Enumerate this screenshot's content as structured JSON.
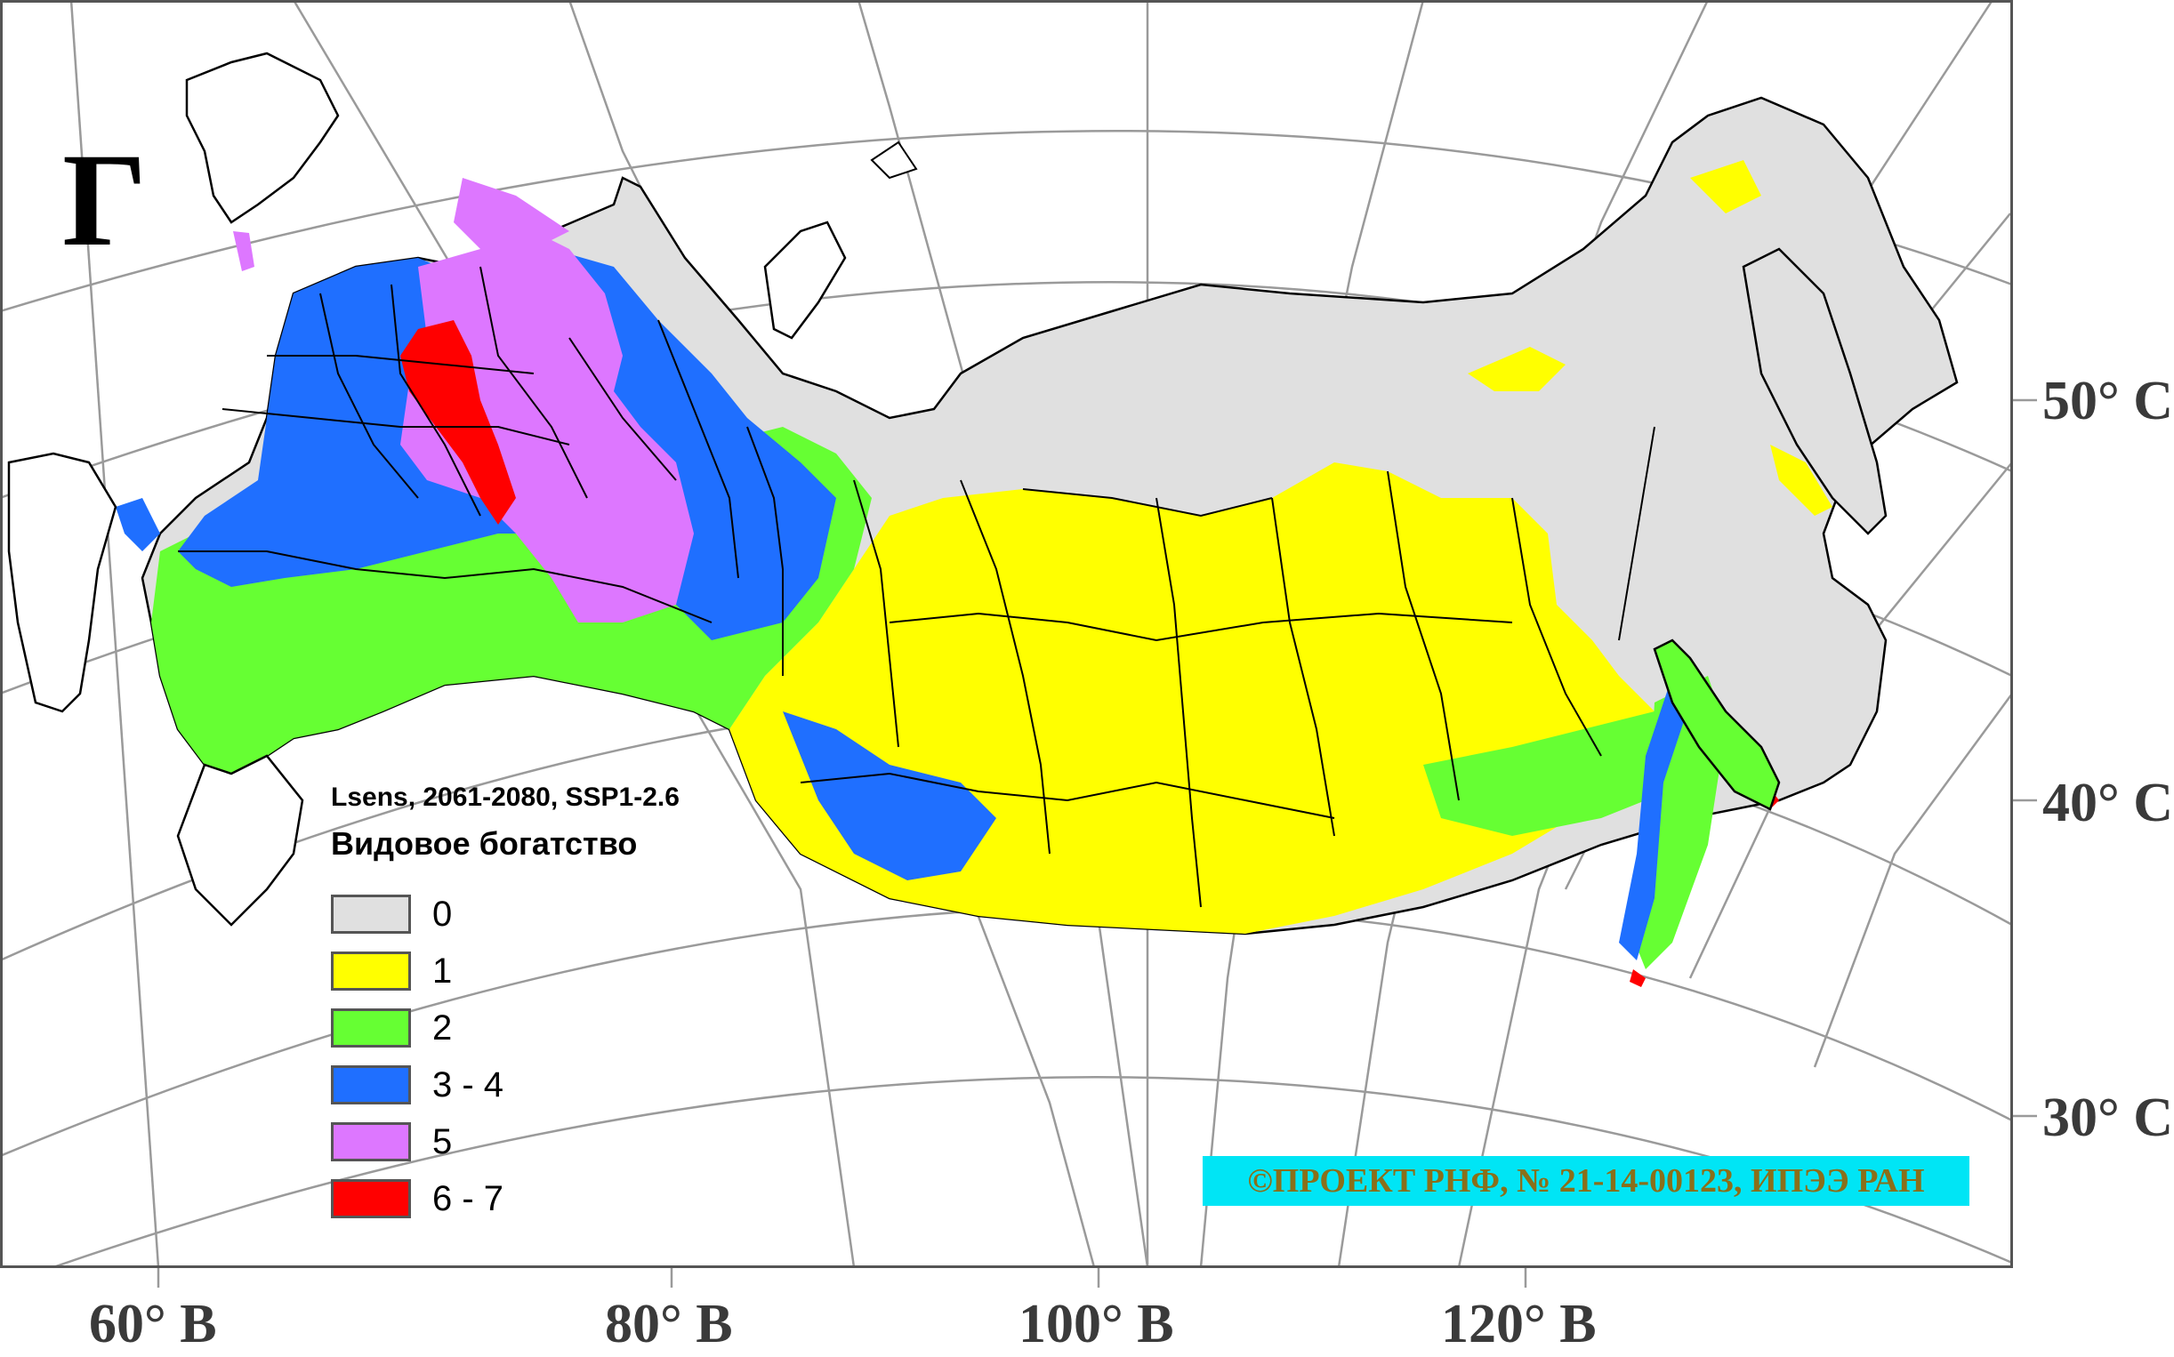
{
  "panel_letter": "Г",
  "lat_labels": [
    "50° С",
    "40° С",
    "30° С"
  ],
  "lon_labels": [
    "60° В",
    "80° В",
    "100° В",
    "120° В"
  ],
  "legend": {
    "caption": "Lsens, 2061-2080, SSP1-2.6",
    "title": "Видовое богатство",
    "items": [
      {
        "label": "0",
        "color": "#e0e0e0"
      },
      {
        "label": "1",
        "color": "#ffff00"
      },
      {
        "label": "2",
        "color": "#66ff33"
      },
      {
        "label": "3 - 4",
        "color": "#1f6fff"
      },
      {
        "label": "5",
        "color": "#dd77ff"
      },
      {
        "label": "6 - 7",
        "color": "#ff0000"
      }
    ]
  },
  "copyright": "©ПРОЕКТ РНФ, № 21-14-00123, ИПЭЭ РАН",
  "colors": {
    "graticule": "#9a9a9a",
    "border": "#000000",
    "frame": "#555555",
    "label_badge": "#00e5f5"
  }
}
